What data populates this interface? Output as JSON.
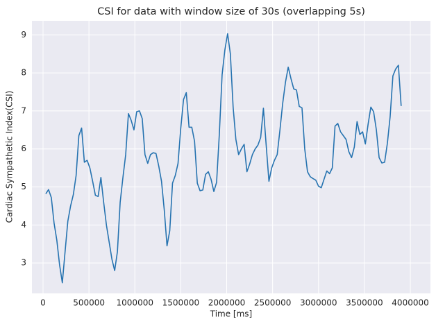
{
  "chart_data": {
    "type": "line",
    "title": "CSI for data with window size of 30s (overlapping 5s)",
    "xlabel": "Time [ms]",
    "ylabel": "Cardiac Sympathetic Index(CSI)",
    "x": [
      30000,
      60000,
      90000,
      120000,
      150000,
      180000,
      210000,
      240000,
      270000,
      300000,
      330000,
      360000,
      390000,
      420000,
      450000,
      480000,
      510000,
      540000,
      570000,
      600000,
      630000,
      660000,
      690000,
      720000,
      750000,
      780000,
      810000,
      840000,
      870000,
      900000,
      930000,
      960000,
      990000,
      1020000,
      1050000,
      1080000,
      1110000,
      1140000,
      1170000,
      1200000,
      1230000,
      1260000,
      1290000,
      1320000,
      1350000,
      1380000,
      1410000,
      1440000,
      1470000,
      1500000,
      1530000,
      1560000,
      1590000,
      1620000,
      1650000,
      1680000,
      1710000,
      1740000,
      1770000,
      1800000,
      1830000,
      1860000,
      1890000,
      1920000,
      1950000,
      1980000,
      2010000,
      2040000,
      2070000,
      2100000,
      2130000,
      2160000,
      2190000,
      2220000,
      2250000,
      2280000,
      2310000,
      2340000,
      2370000,
      2400000,
      2430000,
      2460000,
      2490000,
      2520000,
      2550000,
      2580000,
      2610000,
      2640000,
      2670000,
      2700000,
      2730000,
      2760000,
      2790000,
      2820000,
      2850000,
      2880000,
      2910000,
      2940000,
      2970000,
      3000000,
      3030000,
      3060000,
      3090000,
      3120000,
      3150000,
      3180000,
      3210000,
      3240000,
      3270000,
      3300000,
      3330000,
      3360000,
      3390000,
      3420000,
      3450000,
      3480000,
      3510000,
      3540000,
      3570000,
      3600000,
      3630000,
      3660000,
      3690000,
      3720000,
      3750000,
      3780000,
      3810000,
      3840000,
      3870000,
      3900000
    ],
    "values": [
      4.82,
      4.93,
      4.72,
      4.05,
      3.6,
      2.95,
      2.48,
      3.3,
      4.1,
      4.5,
      4.8,
      5.3,
      6.35,
      6.55,
      5.65,
      5.7,
      5.5,
      5.15,
      4.78,
      4.75,
      5.25,
      4.6,
      4.0,
      3.55,
      3.1,
      2.8,
      3.3,
      4.6,
      5.25,
      5.85,
      6.93,
      6.75,
      6.5,
      6.98,
      7.0,
      6.8,
      5.85,
      5.62,
      5.85,
      5.9,
      5.88,
      5.55,
      5.15,
      4.4,
      3.45,
      3.85,
      5.1,
      5.3,
      5.62,
      6.55,
      7.3,
      7.48,
      6.57,
      6.57,
      6.2,
      5.1,
      4.9,
      4.92,
      5.33,
      5.4,
      5.2,
      4.88,
      5.12,
      6.4,
      7.95,
      8.6,
      9.03,
      8.5,
      7.1,
      6.25,
      5.85,
      6.0,
      6.12,
      5.4,
      5.6,
      5.85,
      6.0,
      6.1,
      6.3,
      7.07,
      6.1,
      5.15,
      5.5,
      5.7,
      5.85,
      6.5,
      7.2,
      7.75,
      8.15,
      7.85,
      7.58,
      7.55,
      7.12,
      7.08,
      6.0,
      5.4,
      5.27,
      5.22,
      5.18,
      5.02,
      4.98,
      5.2,
      5.42,
      5.35,
      5.5,
      6.6,
      6.67,
      6.45,
      6.35,
      6.25,
      5.93,
      5.77,
      6.05,
      6.72,
      6.38,
      6.45,
      6.13,
      6.65,
      7.1,
      6.98,
      6.5,
      5.77,
      5.63,
      5.65,
      6.15,
      6.85,
      7.92,
      8.1,
      8.2,
      7.13
    ],
    "color": "#2673b0",
    "xlim": [
      -121000,
      4219000
    ],
    "ylim": [
      2.2,
      9.37
    ],
    "xticks": [
      0,
      500000,
      1000000,
      1500000,
      2000000,
      2500000,
      3000000,
      3500000,
      4000000
    ],
    "yticks": [
      3,
      4,
      5,
      6,
      7,
      8,
      9
    ],
    "grid": true
  }
}
